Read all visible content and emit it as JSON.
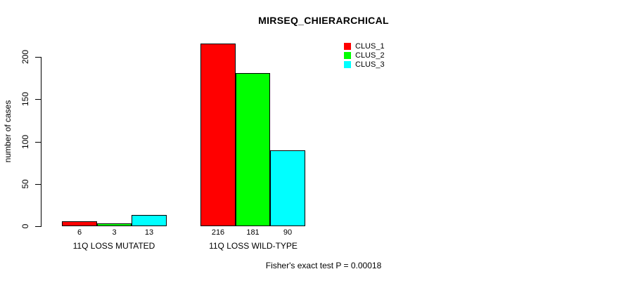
{
  "chart_data": {
    "type": "bar",
    "title": "MIRSEQ_CHIERARCHICAL",
    "ylabel": "number of cases",
    "xlabel": "",
    "categories": [
      "11Q LOSS MUTATED",
      "11Q LOSS WILD-TYPE"
    ],
    "series": [
      {
        "name": "CLUS_1",
        "color": "#ff0000",
        "values": [
          6,
          216
        ]
      },
      {
        "name": "CLUS_2",
        "color": "#00ff00",
        "values": [
          3,
          181
        ]
      },
      {
        "name": "CLUS_3",
        "color": "#00ffff",
        "values": [
          13,
          90
        ]
      }
    ],
    "bar_value_labels_shown": true,
    "yticks": [
      0,
      50,
      100,
      150,
      200
    ],
    "ylim": [
      0,
      220
    ],
    "grid": false,
    "legend_position": "top-right",
    "annotation": "Fisher's exact test P = 0.00018"
  }
}
